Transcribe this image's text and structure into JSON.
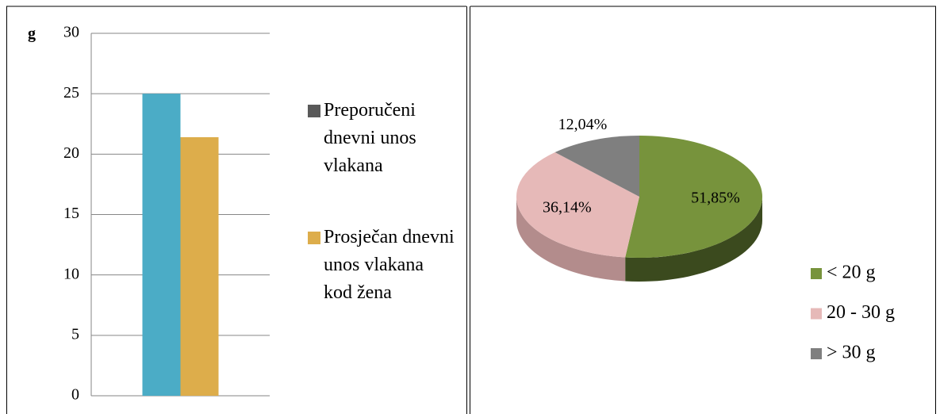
{
  "chart_data": [
    {
      "type": "bar",
      "ylabel": "g",
      "categories": [
        null
      ],
      "series": [
        {
          "name": "Preporučeni dnevni unos vlakana",
          "color": "#4bacc6",
          "marker_color": "#595959",
          "values": [
            25
          ]
        },
        {
          "name": "Prosječan dnevni unos vlakana kod žena",
          "color": "#ddad4b",
          "marker_color": "#ddad4b",
          "values": [
            21.4
          ]
        }
      ],
      "ylim": [
        0,
        30
      ],
      "yticks": [
        0,
        5,
        10,
        15,
        20,
        25,
        30
      ],
      "grid": true,
      "legend": "right"
    },
    {
      "type": "pie",
      "categories": [
        "< 20 g",
        "20 - 30 g",
        "> 30 g"
      ],
      "values": [
        51.85,
        36.14,
        12.04
      ],
      "value_labels": [
        "51,85%",
        "36,14%",
        "12,04%"
      ],
      "colors": [
        "#77933c",
        "#e6b9b8",
        "#7f7f7f"
      ],
      "legend": "right"
    }
  ]
}
